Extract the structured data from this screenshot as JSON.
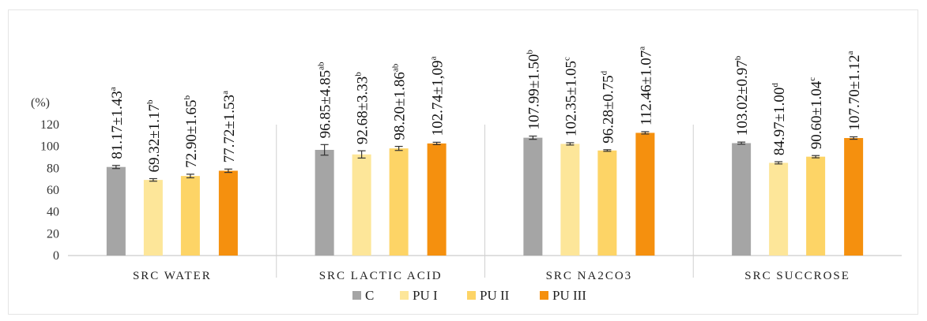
{
  "chart_data": {
    "type": "bar",
    "title": "",
    "ylabel": "(%)",
    "xlabel": "",
    "ylim": [
      0,
      120
    ],
    "yticks": [
      "0",
      "20",
      "40",
      "60",
      "80",
      "100",
      "120"
    ],
    "grid": false,
    "legend_position": "bottom",
    "categories": [
      "SRC WATER",
      "SRC LACTIC ACID",
      "SRC NA2CO3",
      "SRC SUCCROSE"
    ],
    "series": [
      {
        "name": "C",
        "color": "#a5a5a5",
        "values": [
          81.17,
          96.85,
          107.99,
          103.02
        ],
        "errors": [
          1.43,
          4.85,
          1.5,
          0.97
        ],
        "labels": [
          "81.17±1.43",
          "96.85±4.85",
          "107.99±1.50",
          "103.02±0.97"
        ],
        "letters": [
          "a",
          "ab",
          "b",
          "b"
        ]
      },
      {
        "name": "PU I",
        "color": "#fde699",
        "values": [
          69.32,
          92.68,
          102.35,
          84.97
        ],
        "errors": [
          1.17,
          3.33,
          1.05,
          1.0
        ],
        "labels": [
          "69.32±1.17",
          "92.68±3.33",
          "102.35±1.05",
          "84.97±1.00"
        ],
        "letters": [
          "b",
          "b",
          "c",
          "d"
        ]
      },
      {
        "name": "PU II",
        "color": "#fdd466",
        "values": [
          72.9,
          98.2,
          96.28,
          90.6
        ],
        "errors": [
          1.65,
          1.86,
          0.75,
          1.04
        ],
        "labels": [
          "72.90±1.65",
          "98.20±1.86",
          "96.28±0.75",
          "90.60±1.04"
        ],
        "letters": [
          "b",
          "ab",
          "d",
          "c"
        ]
      },
      {
        "name": "PU III",
        "color": "#f5900e",
        "values": [
          77.72,
          102.74,
          112.46,
          107.7
        ],
        "errors": [
          1.53,
          1.09,
          1.07,
          1.12
        ],
        "labels": [
          "77.72±1.53",
          "102.74±1,09",
          "112.46±1.07",
          "107.70±1.12"
        ],
        "letters": [
          "a",
          "a",
          "a",
          "a"
        ]
      }
    ]
  }
}
